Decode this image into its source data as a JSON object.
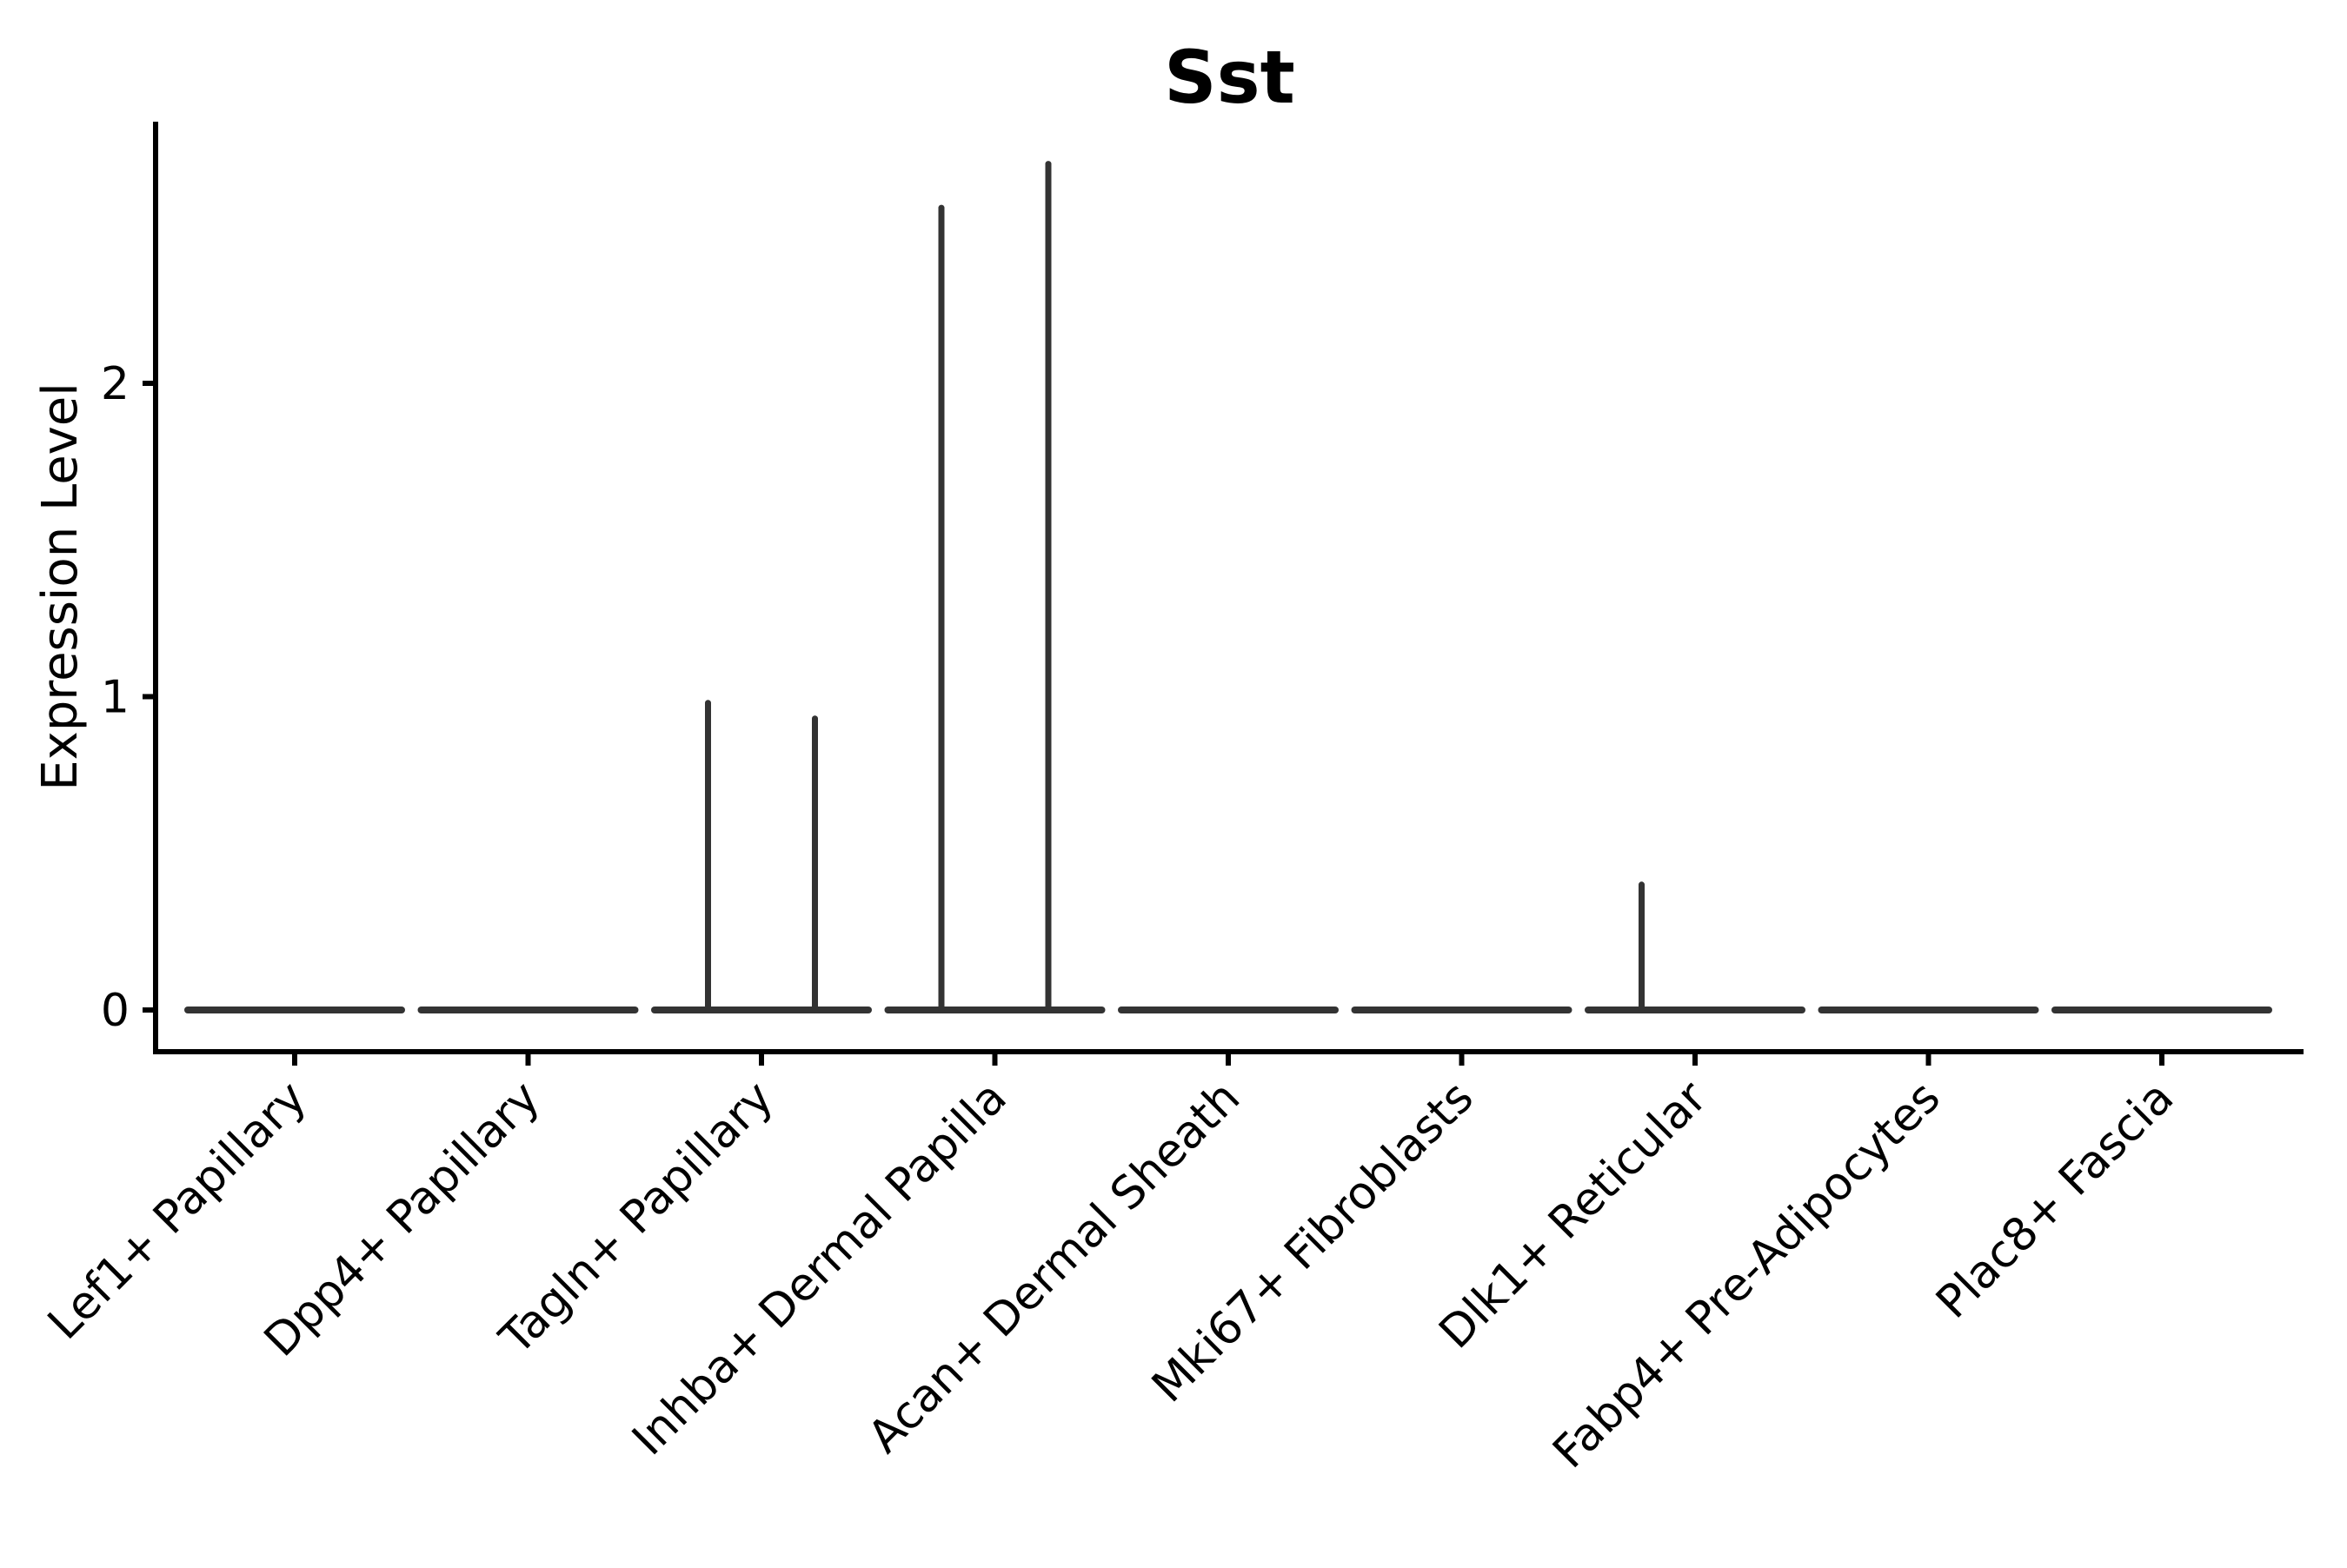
{
  "figure": {
    "background": "#ffffff",
    "text_color": "#000000",
    "violin_color": "#333333",
    "axis_color": "#000000"
  },
  "chart_data": {
    "type": "violin",
    "title": "Sst",
    "xlabel": "",
    "ylabel": "Expression Level",
    "yticks": [
      "0",
      "1",
      "2"
    ],
    "ytick_values": [
      0,
      1,
      2
    ],
    "ylim": [
      -0.13,
      2.84
    ],
    "legend": "none",
    "grid": "off",
    "x_tick_rotation_deg": 45,
    "categories": [
      "Lef1+ Papillary",
      "Dpp4+ Papillary",
      "Tagln+ Papillary",
      "Inhba+ Dermal Papilla",
      "Acan+ Dermal Sheath",
      "Mki67+ Fibroblasts",
      "Dlk1+ Reticular",
      "Fabp4+ Pre-Adipocytes",
      "Plac8+ Fascia"
    ],
    "violins": [
      {
        "label": "Lef1+ Papillary",
        "base_value": 0,
        "sub_violin_max": [
          0,
          0
        ]
      },
      {
        "label": "Dpp4+ Papillary",
        "base_value": 0,
        "sub_violin_max": [
          0,
          0
        ]
      },
      {
        "label": "Tagln+ Papillary",
        "base_value": 0,
        "sub_violin_max": [
          0.98,
          0.93
        ]
      },
      {
        "label": "Inhba+ Dermal Papilla",
        "base_value": 0,
        "sub_violin_max": [
          2.56,
          2.7
        ]
      },
      {
        "label": "Acan+ Dermal Sheath",
        "base_value": 0,
        "sub_violin_max": [
          0,
          0
        ]
      },
      {
        "label": "Mki67+ Fibroblasts",
        "base_value": 0,
        "sub_violin_max": [
          0,
          0
        ]
      },
      {
        "label": "Dlk1+ Reticular",
        "base_value": 0,
        "sub_violin_max": [
          0.4,
          0
        ]
      },
      {
        "label": "Fabp4+ Pre-Adipocytes",
        "base_value": 0,
        "sub_violin_max": [
          0,
          0
        ]
      },
      {
        "label": "Plac8+ Fascia",
        "base_value": 0,
        "sub_violin_max": [
          0,
          0
        ]
      }
    ]
  }
}
